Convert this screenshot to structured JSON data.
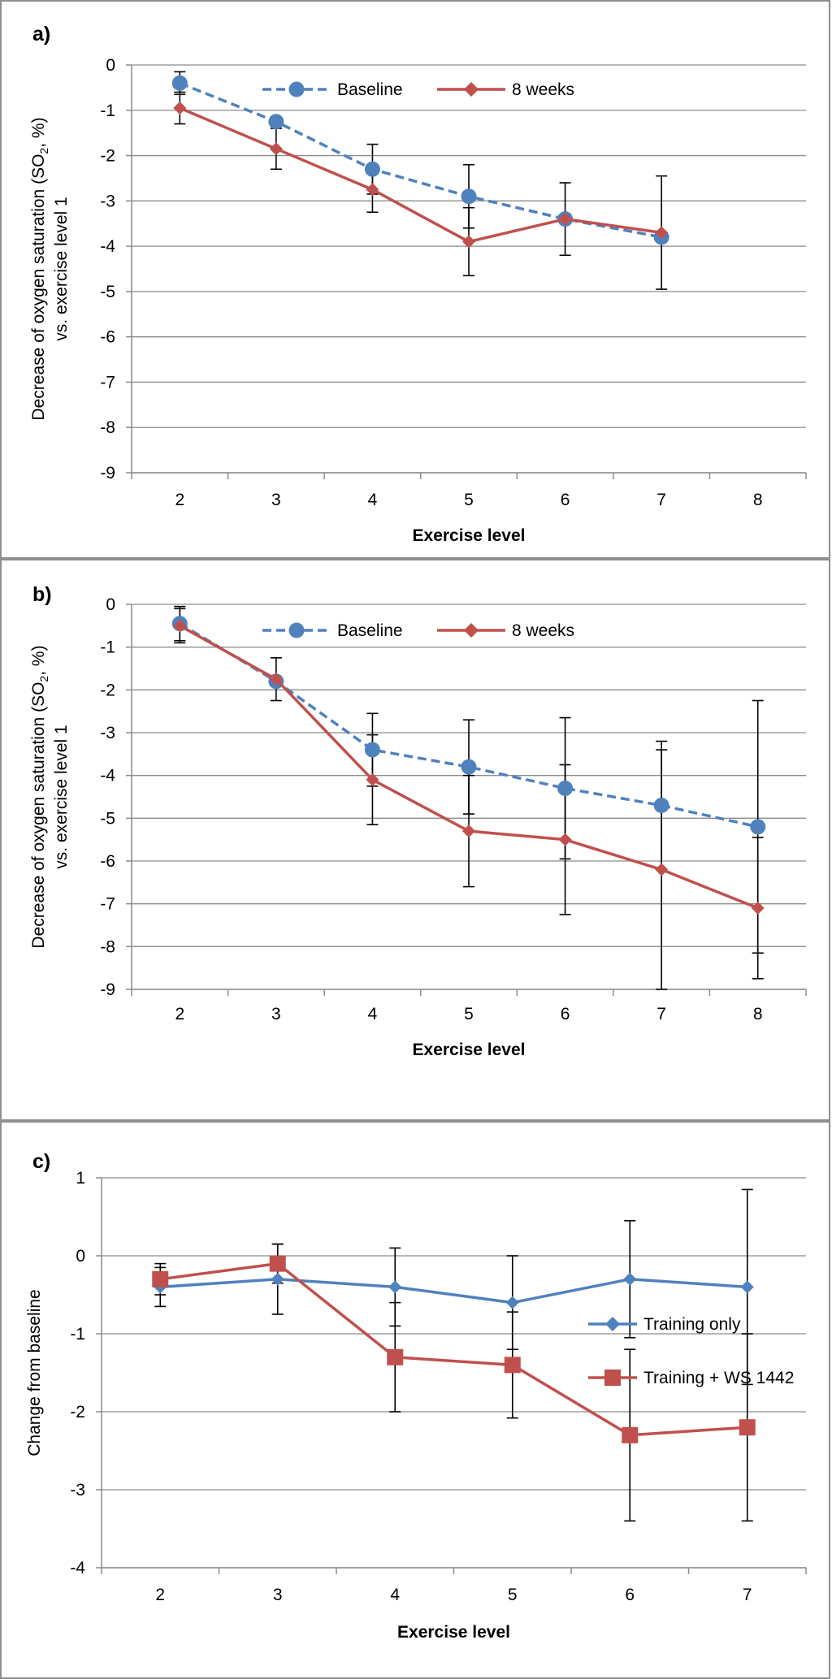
{
  "figure": {
    "panels": [
      {
        "label": "a)",
        "xlabel": "Exercise level",
        "ylabel_lines": [
          "Decrease of oxygen saturation (SO",
          "2",
          ", %)",
          "vs. exercise level 1"
        ],
        "chart_data": {
          "type": "line",
          "title": "a)",
          "categories": [
            2,
            3,
            4,
            5,
            6,
            7,
            8
          ],
          "xlabel": "Exercise level",
          "ylabel": "Decrease of oxygen saturation (SO2, %) vs. exercise level 1",
          "ylim": [
            -9,
            0
          ],
          "yticks": [
            0,
            -1,
            -2,
            -3,
            -4,
            -5,
            -6,
            -7,
            -8,
            -9
          ],
          "grid": true,
          "legend": "top",
          "series": [
            {
              "name": "Baseline",
              "color": "#4f81bd",
              "line": "dashed",
              "marker": "circle",
              "values": [
                -0.4,
                -1.25,
                -2.3,
                -2.9,
                -3.4,
                -3.8,
                null
              ],
              "errors": [
                0.25,
                null,
                0.55,
                0.7,
                null,
                null,
                null
              ]
            },
            {
              "name": "8 weeks",
              "color": "#c0504d",
              "line": "solid",
              "marker": "diamond",
              "values": [
                -0.95,
                -1.85,
                -2.75,
                -3.9,
                -3.4,
                -3.7,
                null
              ],
              "errors": [
                0.35,
                0.45,
                0.5,
                0.75,
                0.8,
                1.25,
                null
              ]
            }
          ]
        }
      },
      {
        "label": "b)",
        "xlabel": "Exercise level",
        "ylabel_lines": [
          "Decrease of oxygen saturation (SO",
          "2",
          ", %)",
          "vs. exercise level 1"
        ],
        "chart_data": {
          "type": "line",
          "title": "b)",
          "categories": [
            2,
            3,
            4,
            5,
            6,
            7,
            8
          ],
          "xlabel": "Exercise level",
          "ylabel": "Decrease of oxygen saturation (SO2, %) vs. exercise level 1",
          "ylim": [
            -9,
            0
          ],
          "yticks": [
            0,
            -1,
            -2,
            -3,
            -4,
            -5,
            -6,
            -7,
            -8,
            -9
          ],
          "grid": true,
          "legend": "top",
          "series": [
            {
              "name": "Baseline",
              "color": "#4f81bd",
              "line": "dashed",
              "marker": "circle",
              "values": [
                -0.45,
                -1.8,
                -3.4,
                -3.8,
                -4.3,
                -4.7,
                -5.2
              ],
              "errors": [
                0.4,
                null,
                0.85,
                1.1,
                1.65,
                1.5,
                2.95
              ]
            },
            {
              "name": "8 weeks",
              "color": "#c0504d",
              "line": "solid",
              "marker": "diamond",
              "values": [
                -0.5,
                -1.75,
                -4.1,
                -5.3,
                -5.5,
                -6.2,
                -7.1
              ],
              "errors": [
                0.4,
                0.5,
                1.05,
                1.3,
                1.75,
                2.8,
                1.65
              ]
            }
          ]
        }
      },
      {
        "label": "c)",
        "xlabel": "Exercise level",
        "ylabel_lines": [
          "Change from baseline"
        ],
        "chart_data": {
          "type": "line",
          "title": "c)",
          "categories": [
            2,
            3,
            4,
            5,
            6,
            7
          ],
          "xlabel": "Exercise level",
          "ylabel": "Change from baseline",
          "ylim": [
            -4,
            1
          ],
          "yticks": [
            1,
            0,
            -1,
            -2,
            -3,
            -4
          ],
          "grid": true,
          "legend": "right",
          "series": [
            {
              "name": "Training only",
              "color": "#4f81bd",
              "line": "solid",
              "marker": "diamond",
              "values": [
                -0.4,
                -0.3,
                -0.4,
                -0.6,
                -0.3,
                -0.4
              ],
              "errors": [
                0.25,
                0.45,
                0.5,
                0.6,
                0.75,
                1.25
              ]
            },
            {
              "name": "Training + WS 1442",
              "color": "#c0504d",
              "line": "solid",
              "marker": "square",
              "values": [
                -0.3,
                -0.1,
                -1.3,
                -1.4,
                -2.3,
                -2.2
              ],
              "errors": [
                0.2,
                0.25,
                0.7,
                0.68,
                1.1,
                1.2
              ]
            }
          ]
        }
      }
    ]
  }
}
